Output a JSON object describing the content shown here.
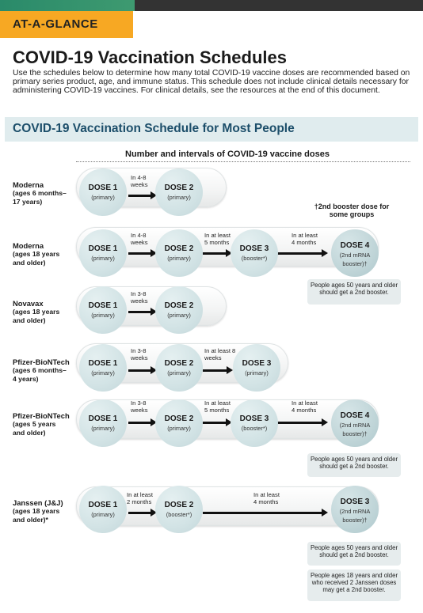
{
  "header": {
    "tag": "AT-A-GLANCE",
    "title": "COVID-19 Vaccination Schedules",
    "intro": "Use the schedules below to determine how many total COVID-19 vaccine doses are recommended based on primary series product, age, and immune status. This schedule does not include clinical details necessary for administering COVID-19 vaccines. For clinical details, see the resources at the end of this document."
  },
  "section": {
    "title": "COVID-19 Vaccination Schedule for Most People",
    "table_heading": "Number and intervals of COVID-19 vaccine doses",
    "booster_note": "†2nd booster dose for some groups"
  },
  "rows": [
    {
      "name": "Moderna",
      "age": [
        "(ages 6 months–",
        "17 years)"
      ],
      "doses": [
        {
          "title": "DOSE 1",
          "sub": [
            "(primary)"
          ]
        },
        {
          "title": "DOSE 2",
          "sub": [
            "(primary)"
          ]
        }
      ],
      "intervals": [
        [
          "In 4-8",
          "weeks"
        ]
      ]
    },
    {
      "name": "Moderna",
      "age": [
        "(ages 18 years",
        "and older)"
      ],
      "doses": [
        {
          "title": "DOSE 1",
          "sub": [
            "(primary)"
          ]
        },
        {
          "title": "DOSE 2",
          "sub": [
            "(primary)"
          ]
        },
        {
          "title": "DOSE 3",
          "sub": [
            "(booster*)"
          ]
        },
        {
          "title": "DOSE 4",
          "sub": [
            "(2nd mRNA",
            "booster)†"
          ]
        }
      ],
      "intervals": [
        [
          "In 4-8",
          "weeks"
        ],
        [
          "In at least",
          "5 months"
        ],
        [
          "In at least",
          "4 months"
        ]
      ],
      "notes": [
        "People ages 50 years and older should get a 2nd booster."
      ]
    },
    {
      "name": "Novavax",
      "age": [
        "(ages 18 years",
        "and older)"
      ],
      "doses": [
        {
          "title": "DOSE 1",
          "sub": [
            "(primary)"
          ]
        },
        {
          "title": "DOSE 2",
          "sub": [
            "(primary)"
          ]
        }
      ],
      "intervals": [
        [
          "In 3-8",
          "weeks"
        ]
      ]
    },
    {
      "name": "Pfizer-BioNTech",
      "age": [
        "(ages 6 months–",
        "4 years)"
      ],
      "doses": [
        {
          "title": "DOSE 1",
          "sub": [
            "(primary)"
          ]
        },
        {
          "title": "DOSE 2",
          "sub": [
            "(primary)"
          ]
        },
        {
          "title": "DOSE 3",
          "sub": [
            "(primary)"
          ]
        }
      ],
      "intervals": [
        [
          "In 3-8",
          "weeks"
        ],
        [
          "In at least 8",
          "weeks"
        ]
      ]
    },
    {
      "name": "Pfizer-BioNTech",
      "age": [
        "(ages 5 years",
        "and older)"
      ],
      "doses": [
        {
          "title": "DOSE 1",
          "sub": [
            "(primary)"
          ]
        },
        {
          "title": "DOSE 2",
          "sub": [
            "(primary)"
          ]
        },
        {
          "title": "DOSE 3",
          "sub": [
            "(booster*)"
          ]
        },
        {
          "title": "DOSE 4",
          "sub": [
            "(2nd mRNA",
            "booster)†"
          ]
        }
      ],
      "intervals": [
        [
          "In 3-8",
          "weeks"
        ],
        [
          "In at least",
          "5 months"
        ],
        [
          "In at least",
          "4 months"
        ]
      ],
      "notes": [
        "People ages 50 years and older should get a 2nd booster."
      ]
    },
    {
      "name": "Janssen (J&J)",
      "age": [
        "(ages 18 years",
        "and older)*"
      ],
      "doses": [
        {
          "title": "DOSE 1",
          "sub": [
            "(primary)"
          ]
        },
        {
          "title": "DOSE 2",
          "sub": [
            "(booster*)"
          ]
        },
        {
          "title": "DOSE 3",
          "sub": [
            "(2nd mRNA",
            "booster)†"
          ]
        }
      ],
      "intervals": [
        [
          "In at least",
          "2 months"
        ],
        [
          "In at least",
          "4 months"
        ]
      ],
      "notes": [
        "People ages 50 years and older should get a 2nd booster.",
        "People ages 18 years and older who received 2 Janssen doses may get a 2nd booster."
      ]
    }
  ]
}
